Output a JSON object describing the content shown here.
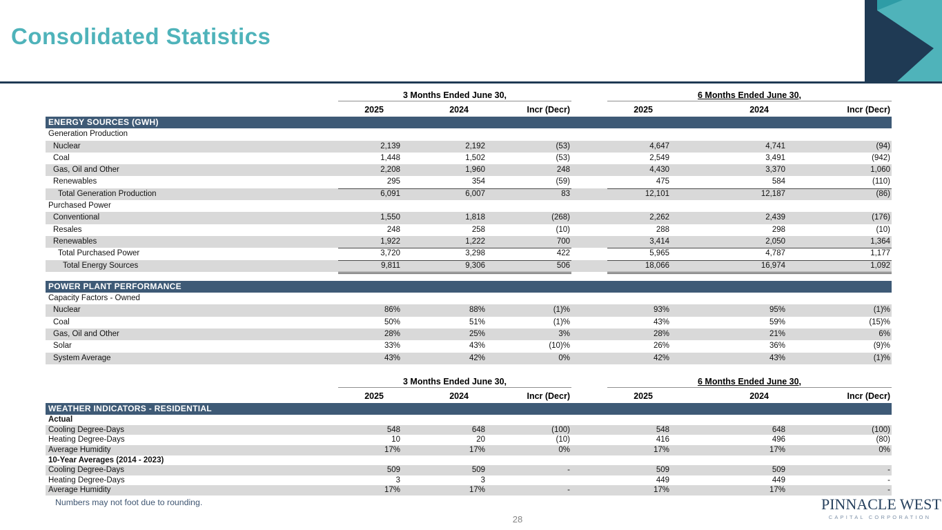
{
  "slide": {
    "title": "Consolidated Statistics",
    "page_number": "28",
    "footnote": "Numbers may not foot due to rounding."
  },
  "logo": {
    "name": "PINNACLE WEST",
    "subtitle": "CAPITAL CORPORATION"
  },
  "colors": {
    "title_teal": "#4FB3BA",
    "navy": "#1F3A54",
    "band_blue": "#3E5A76",
    "zebra_gray": "#D9D9D9",
    "deco_dark_teal": "#2E9CA6"
  },
  "table": {
    "group_headers": {
      "three_months": "3 Months Ended June 30,",
      "six_months": "6 Months Ended June 30,"
    },
    "column_headers": [
      "2025",
      "2024",
      "Incr (Decr)",
      "2025",
      "2024",
      "Incr (Decr)"
    ],
    "blocks": [
      {
        "show_group_header": true,
        "sections": [
          {
            "band": "ENERGY SOURCES (GWH)",
            "compact": false,
            "rows": [
              {
                "label": "Generation Production",
                "indent": 0,
                "bold": false,
                "underline": "none",
                "values": [
                  "",
                  "",
                  "",
                  "",
                  "",
                  ""
                ]
              },
              {
                "label": "Nuclear",
                "indent": 1,
                "bold": false,
                "underline": "none",
                "values": [
                  "2,139",
                  "2,192",
                  "(53)",
                  "4,647",
                  "4,741",
                  "(94)"
                ]
              },
              {
                "label": "Coal",
                "indent": 1,
                "bold": false,
                "underline": "none",
                "values": [
                  "1,448",
                  "1,502",
                  "(53)",
                  "2,549",
                  "3,491",
                  "(942)"
                ]
              },
              {
                "label": "Gas, Oil and Other",
                "indent": 1,
                "bold": false,
                "underline": "none",
                "values": [
                  "2,208",
                  "1,960",
                  "248",
                  "4,430",
                  "3,370",
                  "1,060"
                ]
              },
              {
                "label": "Renewables",
                "indent": 1,
                "bold": false,
                "underline": "single",
                "values": [
                  "295",
                  "354",
                  "(59)",
                  "475",
                  "584",
                  "(110)"
                ]
              },
              {
                "label": "Total Generation Production",
                "indent": 2,
                "bold": false,
                "underline": "none",
                "values": [
                  "6,091",
                  "6,007",
                  "83",
                  "12,101",
                  "12,187",
                  "(86)"
                ]
              },
              {
                "label": "Purchased Power",
                "indent": 0,
                "bold": false,
                "underline": "none",
                "values": [
                  "",
                  "",
                  "",
                  "",
                  "",
                  ""
                ]
              },
              {
                "label": "Conventional",
                "indent": 1,
                "bold": false,
                "underline": "none",
                "values": [
                  "1,550",
                  "1,818",
                  "(268)",
                  "2,262",
                  "2,439",
                  "(176)"
                ]
              },
              {
                "label": "Resales",
                "indent": 1,
                "bold": false,
                "underline": "none",
                "values": [
                  "248",
                  "258",
                  "(10)",
                  "288",
                  "298",
                  "(10)"
                ]
              },
              {
                "label": "Renewables",
                "indent": 1,
                "bold": false,
                "underline": "single",
                "values": [
                  "1,922",
                  "1,222",
                  "700",
                  "3,414",
                  "2,050",
                  "1,364"
                ]
              },
              {
                "label": "Total Purchased Power",
                "indent": 2,
                "bold": false,
                "underline": "single",
                "values": [
                  "3,720",
                  "3,298",
                  "422",
                  "5,965",
                  "4,787",
                  "1,177"
                ]
              },
              {
                "label": "Total Energy Sources",
                "indent": 3,
                "bold": false,
                "underline": "double",
                "values": [
                  "9,811",
                  "9,306",
                  "506",
                  "18,066",
                  "16,974",
                  "1,092"
                ]
              }
            ]
          },
          {
            "band": "POWER PLANT PERFORMANCE",
            "compact": false,
            "rows": [
              {
                "label": "Capacity Factors - Owned",
                "indent": 0,
                "bold": false,
                "underline": "none",
                "values": [
                  "",
                  "",
                  "",
                  "",
                  "",
                  ""
                ]
              },
              {
                "label": "Nuclear",
                "indent": 1,
                "bold": false,
                "underline": "none",
                "values": [
                  "86%",
                  "88%",
                  "(1)%",
                  "93%",
                  "95%",
                  "(1)%"
                ]
              },
              {
                "label": "Coal",
                "indent": 1,
                "bold": false,
                "underline": "none",
                "values": [
                  "50%",
                  "51%",
                  "(1)%",
                  "43%",
                  "59%",
                  "(15)%"
                ]
              },
              {
                "label": "Gas, Oil and Other",
                "indent": 1,
                "bold": false,
                "underline": "none",
                "values": [
                  "28%",
                  "25%",
                  "3%",
                  "28%",
                  "21%",
                  "6%"
                ]
              },
              {
                "label": "Solar",
                "indent": 1,
                "bold": false,
                "underline": "none",
                "values": [
                  "33%",
                  "43%",
                  "(10)%",
                  "26%",
                  "36%",
                  "(9)%"
                ]
              },
              {
                "label": "System Average",
                "indent": 1,
                "bold": false,
                "underline": "none",
                "values": [
                  "43%",
                  "42%",
                  "0%",
                  "42%",
                  "43%",
                  "(1)%"
                ]
              }
            ]
          }
        ]
      },
      {
        "show_group_header": true,
        "sections": [
          {
            "band": "WEATHER INDICATORS - RESIDENTIAL",
            "compact": true,
            "rows": [
              {
                "label": "Actual",
                "indent": 0,
                "bold": true,
                "underline": "none",
                "values": [
                  "",
                  "",
                  "",
                  "",
                  "",
                  ""
                ]
              },
              {
                "label": "Cooling Degree-Days",
                "indent": 0,
                "bold": false,
                "underline": "none",
                "values": [
                  "548",
                  "648",
                  "(100)",
                  "548",
                  "648",
                  "(100)"
                ]
              },
              {
                "label": "Heating Degree-Days",
                "indent": 0,
                "bold": false,
                "underline": "none",
                "values": [
                  "10",
                  "20",
                  "(10)",
                  "416",
                  "496",
                  "(80)"
                ]
              },
              {
                "label": "Average Humidity",
                "indent": 0,
                "bold": false,
                "underline": "none",
                "values": [
                  "17%",
                  "17%",
                  "0%",
                  "17%",
                  "17%",
                  "0%"
                ]
              },
              {
                "label": "10-Year Averages (2014 - 2023)",
                "indent": 0,
                "bold": true,
                "underline": "none",
                "values": [
                  "",
                  "",
                  "",
                  "",
                  "",
                  ""
                ]
              },
              {
                "label": "Cooling Degree-Days",
                "indent": 0,
                "bold": false,
                "underline": "none",
                "values": [
                  "509",
                  "509",
                  "-",
                  "509",
                  "509",
                  "-"
                ]
              },
              {
                "label": "Heating Degree-Days",
                "indent": 0,
                "bold": false,
                "underline": "none",
                "values": [
                  "3",
                  "3",
                  "",
                  "449",
                  "449",
                  "-"
                ]
              },
              {
                "label": "Average Humidity",
                "indent": 0,
                "bold": false,
                "underline": "none",
                "values": [
                  "17%",
                  "17%",
                  "-",
                  "17%",
                  "17%",
                  "-"
                ]
              }
            ]
          }
        ]
      }
    ]
  }
}
